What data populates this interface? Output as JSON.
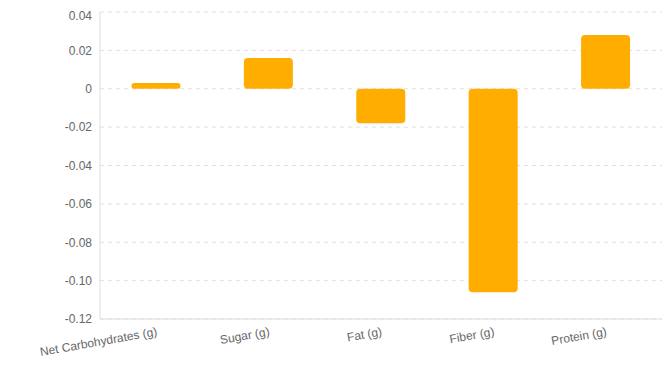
{
  "chart_data": {
    "type": "bar",
    "categories": [
      "Net Carbohydrates (g)",
      "Sugar (g)",
      "Fat (g)",
      "Fiber (g)",
      "Protein (g)"
    ],
    "values": [
      0.003,
      0.016,
      -0.018,
      -0.106,
      0.028
    ],
    "color": "#ffad00",
    "ylim": [
      -0.12,
      0.04
    ],
    "yticks": [
      -0.12,
      {
        "value": -0.1,
        "label": "-0.10"
      },
      -0.08,
      -0.06,
      -0.04,
      -0.02,
      0,
      0.02,
      0.04
    ],
    "grid": true
  }
}
